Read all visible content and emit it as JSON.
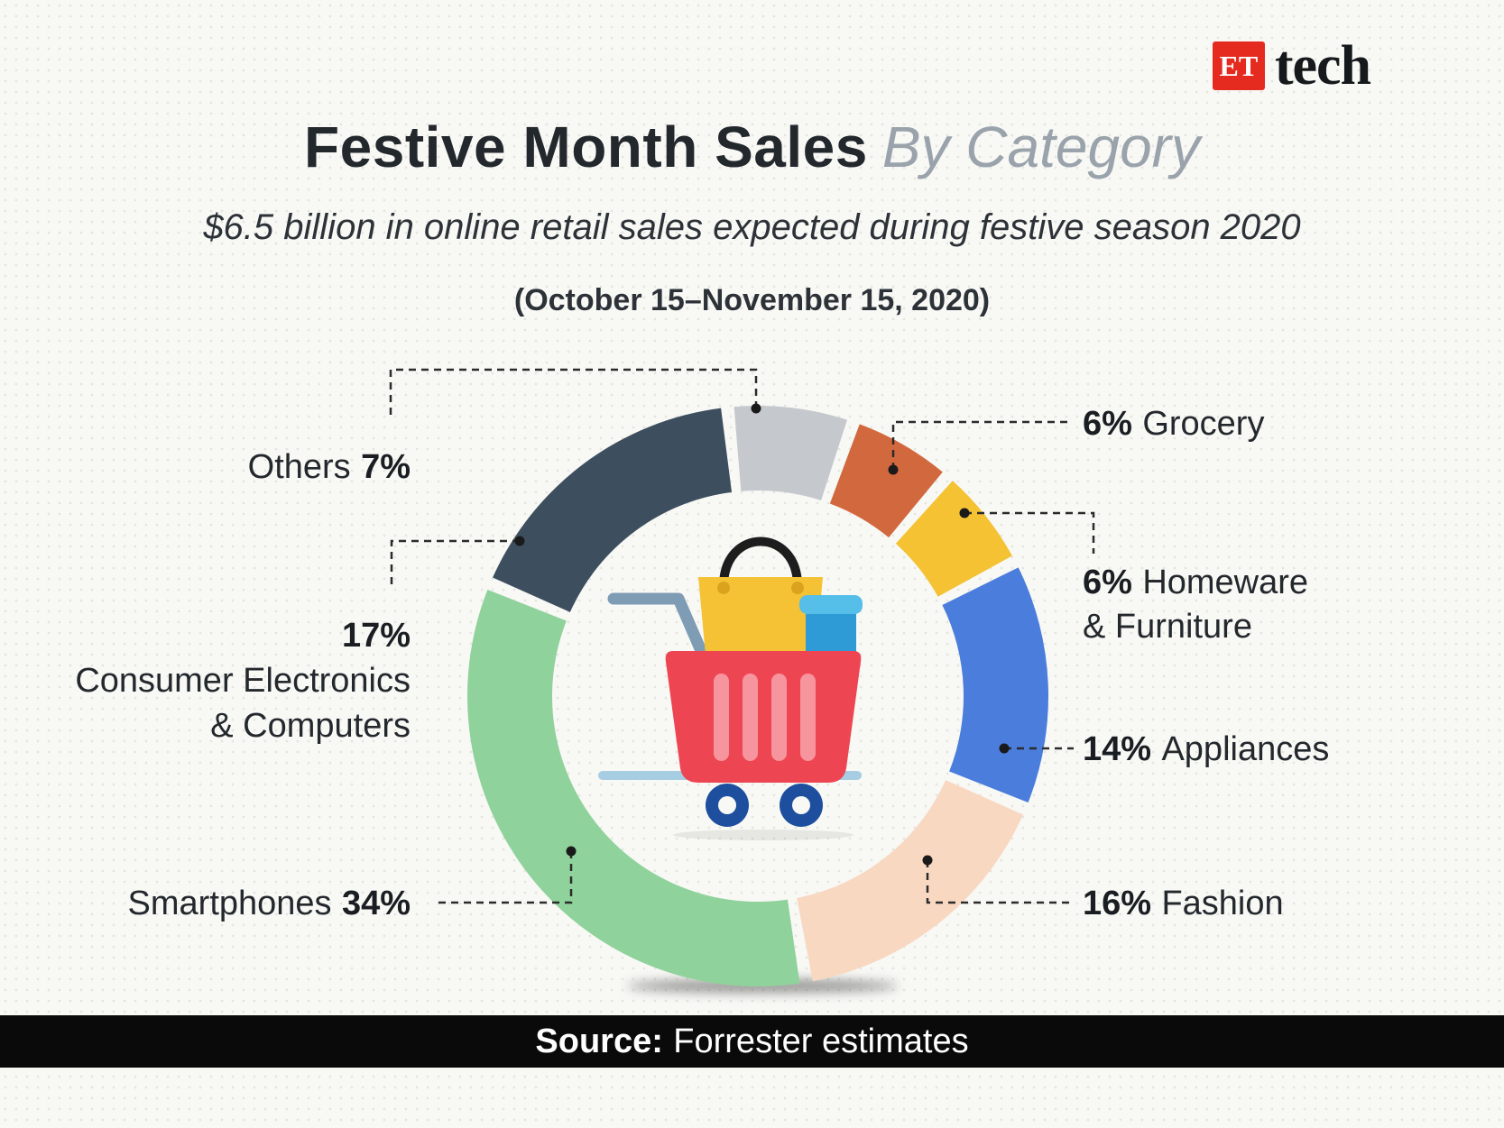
{
  "brand": {
    "et": "ET",
    "tech": "tech"
  },
  "header": {
    "title_bold": "Festive Month Sales",
    "title_light": "By Category",
    "subtitle": "$6.5 billion in online retail sales expected during festive season 2020",
    "period": "(October 15–November 15, 2020)"
  },
  "labels": {
    "others": {
      "name": "Others",
      "pct": "7%"
    },
    "electronics": {
      "pct": "17%",
      "line1": "Consumer Electronics",
      "line2": "& Computers"
    },
    "smartphones": {
      "name": "Smartphones",
      "pct": "34%"
    },
    "grocery": {
      "pct": "6%",
      "name": "Grocery"
    },
    "homeware": {
      "pct": "6%",
      "name": "Homeware",
      "line2": "& Furniture"
    },
    "appliances": {
      "pct": "14%",
      "name": "Appliances"
    },
    "fashion": {
      "pct": "16%",
      "name": "Fashion"
    }
  },
  "footer": {
    "source_label": "Source:",
    "source_text": "Forrester estimates"
  },
  "chart_data": {
    "type": "pie",
    "variant": "donut",
    "title": "Festive Month Sales By Category",
    "subtitle": "$6.5 billion in online retail sales expected during festive season 2020",
    "period": "October 15–November 15, 2020",
    "unit": "percent",
    "total": 100,
    "segments": [
      {
        "label": "Others",
        "value": 7,
        "color": "#c5c9cd"
      },
      {
        "label": "Grocery",
        "value": 6,
        "color": "#d2693e"
      },
      {
        "label": "Homeware & Furniture",
        "value": 6,
        "color": "#f4c233"
      },
      {
        "label": "Appliances",
        "value": 14,
        "color": "#4a7ddc"
      },
      {
        "label": "Fashion",
        "value": 16,
        "color": "#f9d8c2"
      },
      {
        "label": "Smartphones",
        "value": 34,
        "color": "#90d29c"
      },
      {
        "label": "Consumer Electronics & Computers",
        "value": 17,
        "color": "#3d4f5f"
      }
    ],
    "source": "Forrester estimates"
  }
}
